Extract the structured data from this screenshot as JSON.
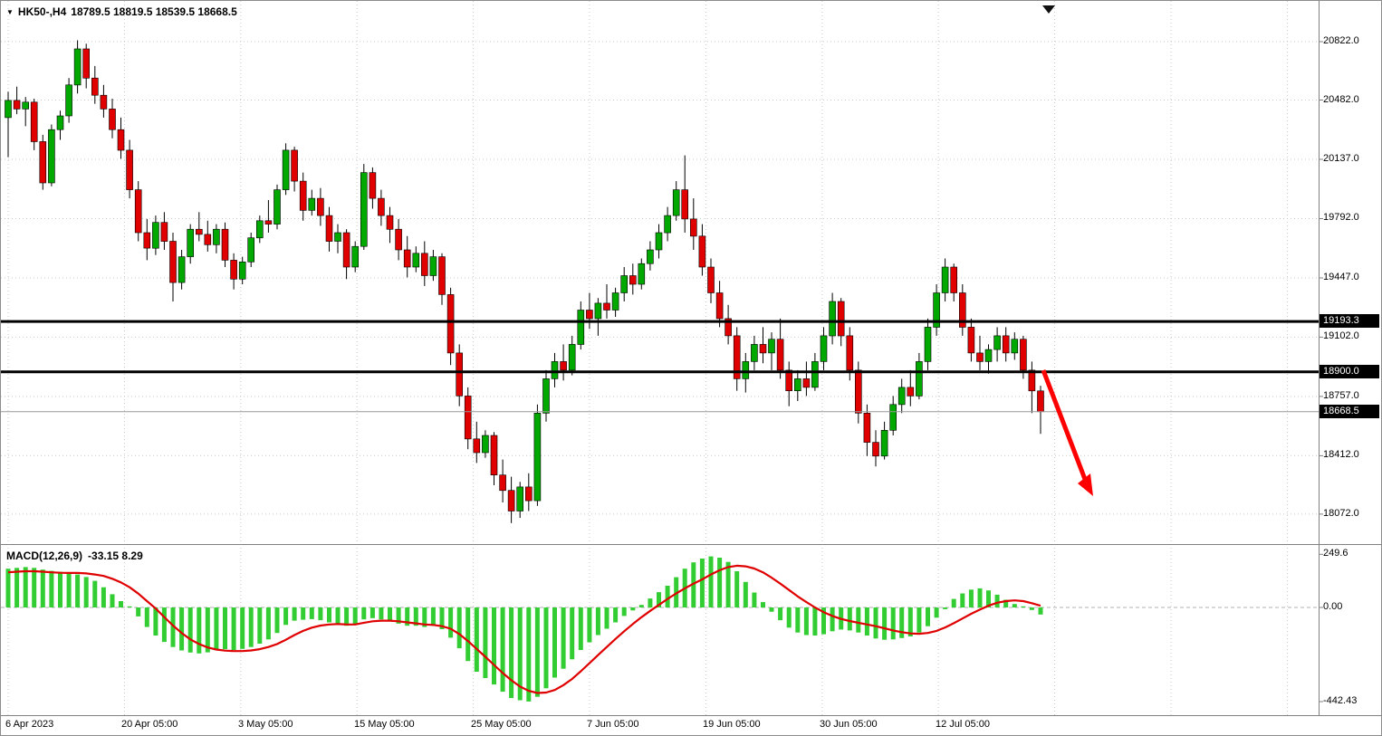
{
  "header": {
    "symbol": "HK50-,H4",
    "ohlc_text": "18789.5 18819.5 18539.5 18668.5"
  },
  "chart_data": {
    "type": "candlestick",
    "title": "HK50-,H4",
    "symbol": "HK50-",
    "timeframe": "H4",
    "last_candle": {
      "open": 18789.5,
      "high": 18819.5,
      "low": 18539.5,
      "close": 18668.5
    },
    "price_range": [
      17900,
      21060
    ],
    "grid": true,
    "price_axis_ticks": [
      "20822.0",
      "20482.0",
      "20137.0",
      "19792.0",
      "19447.0",
      "19102.0",
      "18757.0",
      "18412.0",
      "18072.0"
    ],
    "time_axis_labels": [
      "6 Apr 2023",
      "20 Apr 05:00",
      "3 May 05:00",
      "15 May 05:00",
      "25 May 05:00",
      "7 Jun 05:00",
      "19 Jun 05:00",
      "30 Jun 05:00",
      "12 Jul 05:00"
    ],
    "horizontal_lines": [
      {
        "price": 19193.3,
        "label": "19193.3"
      },
      {
        "price": 18900.0,
        "label": "18900.0"
      }
    ],
    "current_price": {
      "price": 18668.5,
      "label": "18668.5"
    },
    "annotations": [
      {
        "type": "arrow-down-right",
        "color": "#FF0000"
      }
    ],
    "candles": [
      [
        20380,
        20530,
        20150,
        20480
      ],
      [
        20480,
        20560,
        20400,
        20430
      ],
      [
        20430,
        20500,
        20330,
        20470
      ],
      [
        20470,
        20490,
        20190,
        20240
      ],
      [
        20240,
        20280,
        19960,
        20000
      ],
      [
        20000,
        20340,
        19980,
        20310
      ],
      [
        20310,
        20420,
        20250,
        20390
      ],
      [
        20390,
        20610,
        20350,
        20570
      ],
      [
        20570,
        20830,
        20520,
        20780
      ],
      [
        20780,
        20810,
        20550,
        20610
      ],
      [
        20610,
        20680,
        20460,
        20510
      ],
      [
        20510,
        20570,
        20380,
        20430
      ],
      [
        20430,
        20490,
        20260,
        20310
      ],
      [
        20310,
        20380,
        20140,
        20190
      ],
      [
        20190,
        20250,
        19910,
        19960
      ],
      [
        19960,
        20010,
        19660,
        19710
      ],
      [
        19710,
        19790,
        19550,
        19620
      ],
      [
        19620,
        19810,
        19580,
        19770
      ],
      [
        19770,
        19830,
        19610,
        19660
      ],
      [
        19660,
        19710,
        19310,
        19420
      ],
      [
        19420,
        19610,
        19380,
        19570
      ],
      [
        19570,
        19760,
        19530,
        19730
      ],
      [
        19730,
        19830,
        19660,
        19700
      ],
      [
        19700,
        19780,
        19600,
        19640
      ],
      [
        19640,
        19760,
        19590,
        19730
      ],
      [
        19730,
        19770,
        19510,
        19550
      ],
      [
        19550,
        19590,
        19380,
        19440
      ],
      [
        19440,
        19570,
        19410,
        19540
      ],
      [
        19540,
        19710,
        19510,
        19680
      ],
      [
        19680,
        19810,
        19650,
        19780
      ],
      [
        19780,
        19900,
        19710,
        19760
      ],
      [
        19760,
        19990,
        19730,
        19960
      ],
      [
        19960,
        20230,
        19930,
        20190
      ],
      [
        20190,
        20210,
        19950,
        20010
      ],
      [
        20010,
        20060,
        19780,
        19840
      ],
      [
        19840,
        19960,
        19810,
        19910
      ],
      [
        19910,
        19970,
        19750,
        19810
      ],
      [
        19810,
        19860,
        19600,
        19660
      ],
      [
        19660,
        19760,
        19590,
        19710
      ],
      [
        19710,
        19730,
        19440,
        19510
      ],
      [
        19510,
        19660,
        19480,
        19630
      ],
      [
        19630,
        20110,
        19610,
        20060
      ],
      [
        20060,
        20090,
        19850,
        19910
      ],
      [
        19910,
        19960,
        19750,
        19810
      ],
      [
        19810,
        19860,
        19650,
        19730
      ],
      [
        19730,
        19790,
        19550,
        19610
      ],
      [
        19610,
        19690,
        19450,
        19510
      ],
      [
        19510,
        19630,
        19480,
        19590
      ],
      [
        19590,
        19660,
        19400,
        19460
      ],
      [
        19460,
        19610,
        19430,
        19570
      ],
      [
        19570,
        19590,
        19290,
        19350
      ],
      [
        19350,
        19390,
        18940,
        19010
      ],
      [
        19010,
        19060,
        18700,
        18760
      ],
      [
        18760,
        18810,
        18450,
        18510
      ],
      [
        18510,
        18610,
        18370,
        18430
      ],
      [
        18430,
        18560,
        18400,
        18530
      ],
      [
        18530,
        18550,
        18240,
        18300
      ],
      [
        18300,
        18390,
        18140,
        18210
      ],
      [
        18210,
        18290,
        18020,
        18090
      ],
      [
        18090,
        18260,
        18050,
        18230
      ],
      [
        18230,
        18310,
        18090,
        18150
      ],
      [
        18150,
        18710,
        18120,
        18660
      ],
      [
        18660,
        18910,
        18610,
        18860
      ],
      [
        18860,
        19010,
        18810,
        18960
      ],
      [
        18960,
        19060,
        18850,
        18910
      ],
      [
        18910,
        19110,
        18880,
        19060
      ],
      [
        19060,
        19310,
        19030,
        19260
      ],
      [
        19260,
        19360,
        19150,
        19210
      ],
      [
        19210,
        19330,
        19110,
        19300
      ],
      [
        19300,
        19410,
        19210,
        19260
      ],
      [
        19260,
        19390,
        19220,
        19360
      ],
      [
        19360,
        19510,
        19310,
        19460
      ],
      [
        19460,
        19530,
        19350,
        19410
      ],
      [
        19410,
        19560,
        19380,
        19530
      ],
      [
        19530,
        19660,
        19490,
        19610
      ],
      [
        19610,
        19760,
        19560,
        19710
      ],
      [
        19710,
        19860,
        19660,
        19810
      ],
      [
        19810,
        20010,
        19780,
        19960
      ],
      [
        19960,
        20160,
        19710,
        19790
      ],
      [
        19790,
        19910,
        19610,
        19690
      ],
      [
        19690,
        19760,
        19460,
        19510
      ],
      [
        19510,
        19560,
        19300,
        19360
      ],
      [
        19360,
        19430,
        19160,
        19210
      ],
      [
        19210,
        19290,
        19060,
        19110
      ],
      [
        19110,
        19160,
        18790,
        18860
      ],
      [
        18860,
        19010,
        18780,
        18960
      ],
      [
        18960,
        19110,
        18910,
        19060
      ],
      [
        19060,
        19160,
        18950,
        19010
      ],
      [
        19010,
        19130,
        18910,
        19090
      ],
      [
        19090,
        19210,
        18860,
        18910
      ],
      [
        18910,
        18960,
        18700,
        18790
      ],
      [
        18790,
        18910,
        18730,
        18860
      ],
      [
        18860,
        18960,
        18760,
        18810
      ],
      [
        18810,
        19010,
        18790,
        18960
      ],
      [
        18960,
        19160,
        18910,
        19110
      ],
      [
        19110,
        19360,
        19060,
        19310
      ],
      [
        19310,
        19330,
        19050,
        19110
      ],
      [
        19110,
        19160,
        18850,
        18910
      ],
      [
        18910,
        18960,
        18600,
        18660
      ],
      [
        18660,
        18710,
        18410,
        18490
      ],
      [
        18490,
        18560,
        18350,
        18410
      ],
      [
        18410,
        18610,
        18390,
        18560
      ],
      [
        18560,
        18760,
        18530,
        18710
      ],
      [
        18710,
        18860,
        18660,
        18810
      ],
      [
        18810,
        18910,
        18700,
        18760
      ],
      [
        18760,
        19010,
        18740,
        18960
      ],
      [
        18960,
        19210,
        18910,
        19160
      ],
      [
        19160,
        19410,
        19110,
        19360
      ],
      [
        19360,
        19560,
        19310,
        19510
      ],
      [
        19510,
        19530,
        19310,
        19360
      ],
      [
        19360,
        19410,
        19110,
        19160
      ],
      [
        19160,
        19210,
        18960,
        19010
      ],
      [
        19010,
        19110,
        18910,
        18960
      ],
      [
        18960,
        19060,
        18890,
        19030
      ],
      [
        19030,
        19160,
        18960,
        19110
      ],
      [
        19110,
        19160,
        18960,
        19010
      ],
      [
        19010,
        19130,
        18970,
        19090
      ],
      [
        19090,
        19110,
        18860,
        18910
      ],
      [
        18910,
        18960,
        18660,
        18789.5
      ],
      [
        18789.5,
        18819.5,
        18539.5,
        18668.5
      ]
    ],
    "macd": {
      "label": "MACD(12,26,9)",
      "values_text": "-33.15 8.29",
      "macd_value": -33.15,
      "signal_value": 8.29,
      "axis_ticks": [
        "249.6",
        "0.00",
        "-442.43"
      ],
      "range": [
        -442.43,
        249.6
      ],
      "histogram": [
        182,
        186,
        190,
        186,
        178,
        172,
        168,
        163,
        155,
        143,
        125,
        95,
        62,
        30,
        5,
        -42,
        -92,
        -132,
        -162,
        -186,
        -202,
        -212,
        -216,
        -211,
        -201,
        -196,
        -200,
        -195,
        -186,
        -170,
        -150,
        -120,
        -82,
        -62,
        -58,
        -55,
        -60,
        -70,
        -76,
        -86,
        -80,
        -56,
        -50,
        -56,
        -66,
        -76,
        -86,
        -86,
        -92,
        -86,
        -102,
        -142,
        -192,
        -252,
        -302,
        -332,
        -362,
        -396,
        -426,
        -436,
        -442,
        -420,
        -380,
        -330,
        -288,
        -244,
        -200,
        -164,
        -130,
        -100,
        -70,
        -40,
        -14,
        12,
        42,
        72,
        102,
        142,
        182,
        212,
        230,
        240,
        234,
        214,
        170,
        120,
        70,
        25,
        -20,
        -60,
        -95,
        -118,
        -130,
        -132,
        -126,
        -112,
        -104,
        -108,
        -118,
        -132,
        -146,
        -152,
        -150,
        -144,
        -136,
        -118,
        -88,
        -48,
        -8,
        40,
        66,
        84,
        90,
        80,
        60,
        36,
        16,
        5,
        -12,
        -33.15
      ],
      "signal": [
        165,
        168,
        170,
        170,
        168,
        165,
        163,
        162,
        162,
        160,
        155,
        148,
        135,
        118,
        95,
        65,
        30,
        -5,
        -45,
        -85,
        -120,
        -150,
        -172,
        -188,
        -198,
        -203,
        -205,
        -205,
        -202,
        -196,
        -186,
        -172,
        -152,
        -130,
        -110,
        -95,
        -85,
        -80,
        -78,
        -80,
        -80,
        -72,
        -65,
        -62,
        -62,
        -65,
        -70,
        -75,
        -80,
        -82,
        -88,
        -100,
        -125,
        -158,
        -195,
        -232,
        -270,
        -308,
        -342,
        -372,
        -392,
        -402,
        -400,
        -388,
        -365,
        -336,
        -300,
        -262,
        -224,
        -186,
        -148,
        -112,
        -78,
        -46,
        -16,
        12,
        40,
        66,
        90,
        112,
        132,
        155,
        175,
        190,
        196,
        193,
        183,
        165,
        140,
        112,
        82,
        52,
        25,
        0,
        -22,
        -40,
        -54,
        -64,
        -72,
        -80,
        -88,
        -98,
        -108,
        -116,
        -122,
        -124,
        -120,
        -110,
        -94,
        -74,
        -52,
        -30,
        -10,
        8,
        22,
        30,
        33,
        30,
        20,
        8.29
      ]
    },
    "colors": {
      "bull": "#00A800",
      "bear": "#E00000",
      "wick": "#000000",
      "hist": "#32CD32",
      "signal_line": "#DF0000",
      "hline": "#000000",
      "arrow": "#FF0000",
      "grid": "#c9c9c9"
    }
  }
}
